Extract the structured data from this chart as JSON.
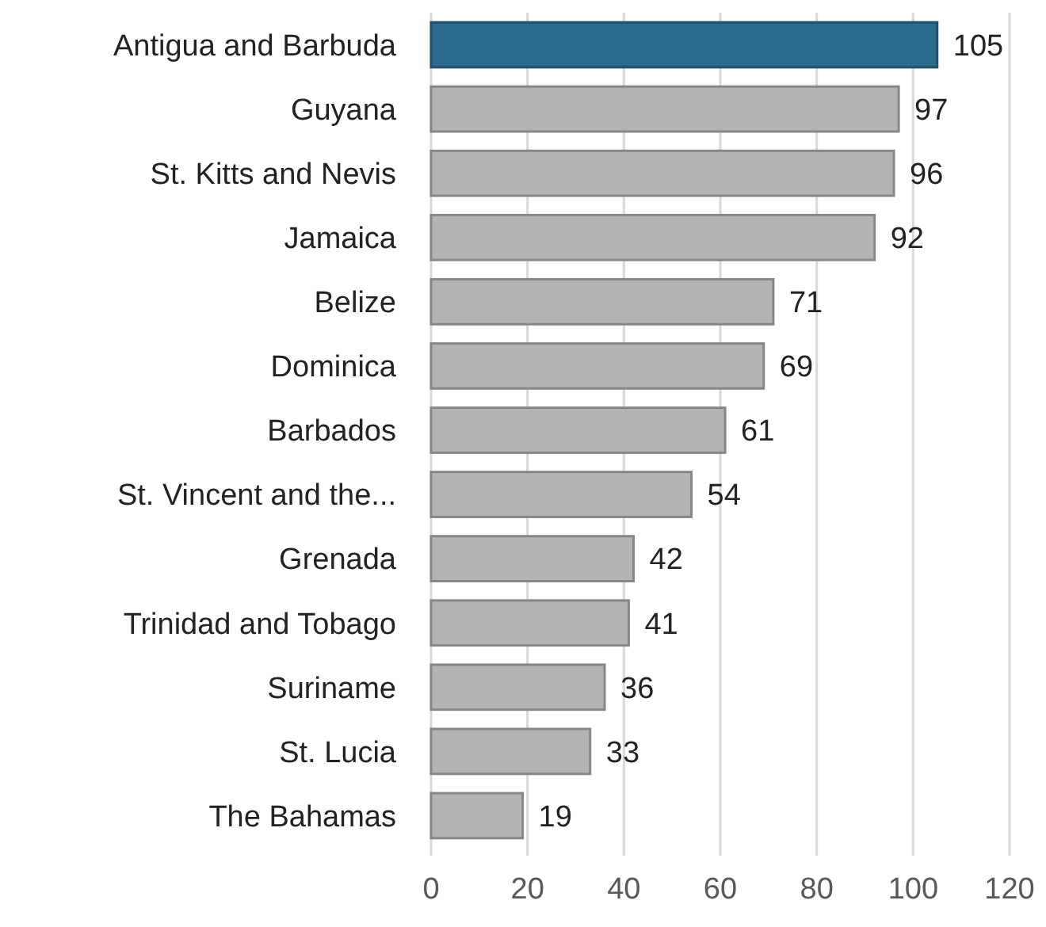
{
  "chart_data": {
    "type": "bar",
    "orientation": "horizontal",
    "categories": [
      "Antigua and Barbuda",
      "Guyana",
      "St. Kitts and Nevis",
      "Jamaica",
      "Belize",
      "Dominica",
      "Barbados",
      "St. Vincent and the...",
      "Grenada",
      "Trinidad and Tobago",
      "Suriname",
      "St. Lucia",
      "The Bahamas"
    ],
    "values": [
      105,
      97,
      96,
      92,
      71,
      69,
      61,
      54,
      42,
      41,
      36,
      33,
      19
    ],
    "colors": [
      "#2b6a8f",
      "#b4b4b4",
      "#b4b4b4",
      "#b4b4b4",
      "#b4b4b4",
      "#b4b4b4",
      "#b4b4b4",
      "#b4b4b4",
      "#b4b4b4",
      "#b4b4b4",
      "#b4b4b4",
      "#b4b4b4",
      "#b4b4b4"
    ],
    "xlim": [
      0,
      120
    ],
    "xticks": [
      0,
      20,
      40,
      60,
      80,
      100,
      120
    ],
    "grid": "x",
    "data_labels": true
  }
}
